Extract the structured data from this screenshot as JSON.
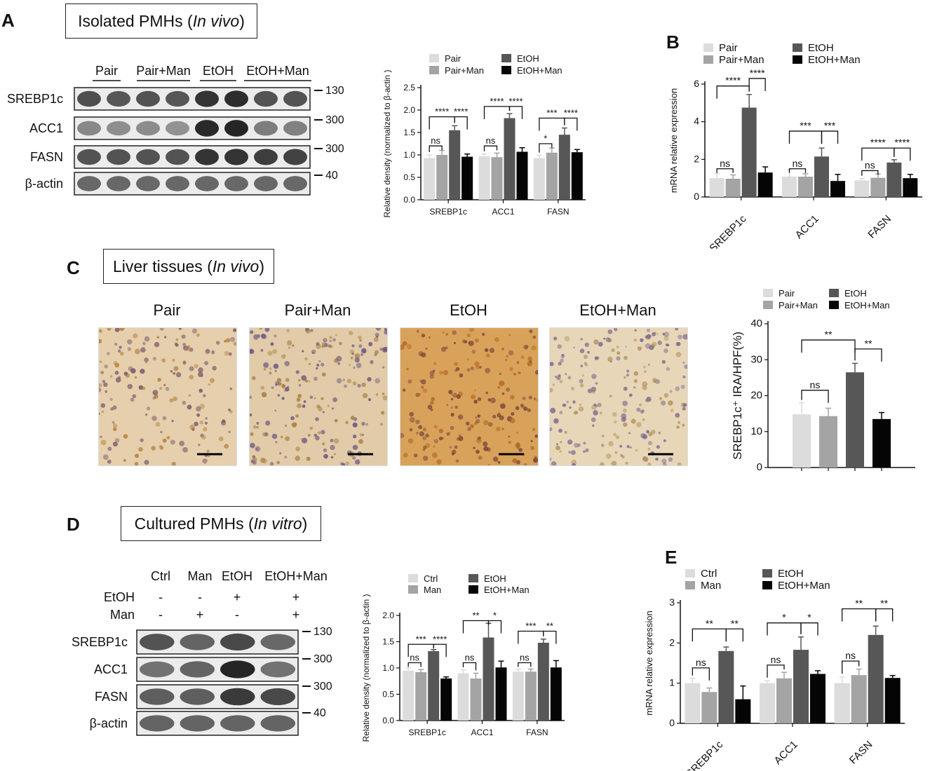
{
  "colors": {
    "pair": "#dcdcdc",
    "pair_man": "#a4a4a4",
    "etoh": "#575757",
    "etoh_man": "#050505"
  },
  "panelA": {
    "letter": "A",
    "title_main": "Isolated PMHs (",
    "title_italic": "In vivo",
    "title_end": ")",
    "groups": [
      "Pair",
      "Pair+Man",
      "EtOH",
      "EtOH+Man"
    ],
    "proteins": [
      "SREBP1c",
      "ACC1",
      "FASN",
      "β-actin"
    ],
    "mw": [
      "130",
      "300",
      "300",
      "40"
    ]
  },
  "panelC": {
    "letter": "C",
    "title_main": "Liver tissues (",
    "title_italic": "In vivo",
    "title_end": ")",
    "images": [
      "Pair",
      "Pair+Man",
      "EtOH",
      "EtOH+Man"
    ]
  },
  "panelD": {
    "letter": "D",
    "title_main": "Cultured PMHs (",
    "title_italic": "In vitro",
    "title_end": ")",
    "groups": [
      "Ctrl",
      "Man",
      "EtOH",
      "EtOH+Man"
    ],
    "treat_rows": [
      {
        "label": "EtOH",
        "signs": [
          "-",
          "-",
          "+",
          "+"
        ]
      },
      {
        "label": "Man",
        "signs": [
          "-",
          "+",
          "-",
          "+"
        ]
      }
    ],
    "proteins": [
      "SREBP1c",
      "ACC1",
      "FASN",
      "β-actin"
    ],
    "mw": [
      "130",
      "300",
      "300",
      "40"
    ]
  },
  "panelB": {
    "letter": "B"
  },
  "panelE": {
    "letter": "E"
  },
  "chart_data": [
    {
      "id": "A-densitometry",
      "type": "bar",
      "ylabel": "Relative density (normalized to β-actin )",
      "ylim": [
        0,
        2.5
      ],
      "yticks": [
        "0.0",
        "0.5",
        "1.0",
        "1.5",
        "2.0",
        "2.5"
      ],
      "categories": [
        "SREBP1c",
        "ACC1",
        "FASN"
      ],
      "series": [
        {
          "name": "Pair",
          "values": [
            0.93,
            0.97,
            0.93
          ],
          "err": [
            0.07,
            0.05,
            0.06
          ]
        },
        {
          "name": "Pair+Man",
          "values": [
            1.0,
            0.95,
            1.05
          ],
          "err": [
            0.1,
            0.09,
            0.1
          ]
        },
        {
          "name": "EtOH",
          "values": [
            1.55,
            1.82,
            1.45
          ],
          "err": [
            0.1,
            0.1,
            0.15
          ]
        },
        {
          "name": "EtOH+Man",
          "values": [
            0.96,
            1.07,
            1.06
          ],
          "err": [
            0.06,
            0.09,
            0.06
          ]
        }
      ],
      "legend": "top",
      "legend_cols": [
        [
          "Pair",
          "Pair+Man"
        ],
        [
          "EtOH",
          "EtOH+Man"
        ]
      ],
      "annotations": [
        {
          "cat": 0,
          "from": 0,
          "to": 1,
          "text": "ns",
          "level": 1.2
        },
        {
          "cat": 0,
          "from": 0,
          "to": 2,
          "text": "****",
          "level": 1.85
        },
        {
          "cat": 0,
          "from": 2,
          "to": 3,
          "text": "****",
          "level": 1.85
        },
        {
          "cat": 1,
          "from": 0,
          "to": 1,
          "text": "ns",
          "level": 1.2
        },
        {
          "cat": 1,
          "from": 0,
          "to": 2,
          "text": "****",
          "level": 2.08
        },
        {
          "cat": 1,
          "from": 2,
          "to": 3,
          "text": "****",
          "level": 2.08
        },
        {
          "cat": 2,
          "from": 0,
          "to": 1,
          "text": "*",
          "level": 1.25
        },
        {
          "cat": 2,
          "from": 0,
          "to": 2,
          "text": "***",
          "level": 1.82
        },
        {
          "cat": 2,
          "from": 2,
          "to": 3,
          "text": "****",
          "level": 1.82
        }
      ]
    },
    {
      "id": "B-mrna",
      "type": "bar",
      "ylabel": "mRNA relative expression",
      "ylim": [
        0,
        6
      ],
      "yticks": [
        "0",
        "2",
        "4",
        "6"
      ],
      "categories": [
        "SREBP1c",
        "ACC1",
        "FASN"
      ],
      "series": [
        {
          "name": "Pair",
          "values": [
            1.0,
            1.08,
            0.88
          ],
          "err": [
            0.25,
            0.35,
            0.1
          ]
        },
        {
          "name": "Pair+Man",
          "values": [
            0.97,
            1.08,
            1.02
          ],
          "err": [
            0.2,
            0.15,
            0.2
          ]
        },
        {
          "name": "EtOH",
          "values": [
            4.75,
            2.15,
            1.83
          ],
          "err": [
            0.7,
            0.45,
            0.15
          ]
        },
        {
          "name": "EtOH+Man",
          "values": [
            1.3,
            0.85,
            1.0
          ],
          "err": [
            0.3,
            0.35,
            0.2
          ]
        }
      ],
      "legend": "top",
      "legend_cols": [
        [
          "Pair",
          "Pair+Man"
        ],
        [
          "EtOH",
          "EtOH+Man"
        ]
      ],
      "annotations": [
        {
          "cat": 0,
          "from": 0,
          "to": 1,
          "text": "ns",
          "level": 1.5
        },
        {
          "cat": 0,
          "from": 0,
          "to": 2,
          "text": "****",
          "level": 5.9
        },
        {
          "cat": 0,
          "from": 2,
          "to": 3,
          "text": "****",
          "level": 6.3
        },
        {
          "cat": 1,
          "from": 0,
          "to": 1,
          "text": "ns",
          "level": 1.5
        },
        {
          "cat": 1,
          "from": 0,
          "to": 2,
          "text": "***",
          "level": 3.5
        },
        {
          "cat": 1,
          "from": 2,
          "to": 3,
          "text": "***",
          "level": 3.5
        },
        {
          "cat": 2,
          "from": 0,
          "to": 1,
          "text": "ns",
          "level": 1.4
        },
        {
          "cat": 2,
          "from": 0,
          "to": 2,
          "text": "****",
          "level": 2.6
        },
        {
          "cat": 2,
          "from": 2,
          "to": 3,
          "text": "****",
          "level": 2.6
        }
      ]
    },
    {
      "id": "C-ihc",
      "type": "bar",
      "ylabel": "SREBP1c⁺ IRA/HPF(%)",
      "ylim": [
        0,
        40
      ],
      "yticks": [
        "0",
        "10",
        "20",
        "30",
        "40"
      ],
      "categories": [
        ""
      ],
      "series": [
        {
          "name": "Pair",
          "values": [
            14.8
          ],
          "err": [
            3.2
          ]
        },
        {
          "name": "Pair+Man",
          "values": [
            14.3
          ],
          "err": [
            2.2
          ]
        },
        {
          "name": "EtOH",
          "values": [
            26.5
          ],
          "err": [
            2.5
          ]
        },
        {
          "name": "EtOH+Man",
          "values": [
            13.5
          ],
          "err": [
            1.8
          ]
        }
      ],
      "legend": "top",
      "legend_cols": [
        [
          "Pair",
          "Pair+Man"
        ],
        [
          "EtOH",
          "EtOH+Man"
        ]
      ],
      "annotations": [
        {
          "cat": 0,
          "from": 0,
          "to": 1,
          "text": "ns",
          "level": 21.5
        },
        {
          "cat": 0,
          "from": 0,
          "to": 2,
          "text": "**",
          "level": 35.5
        },
        {
          "cat": 0,
          "from": 2,
          "to": 3,
          "text": "**",
          "level": 33
        }
      ]
    },
    {
      "id": "D-densitometry",
      "type": "bar",
      "ylabel": "Relative density (normalized to β-actin )",
      "ylim": [
        0,
        2.0
      ],
      "yticks": [
        "0.0",
        "0.5",
        "1.0",
        "1.5",
        "2.0"
      ],
      "categories": [
        "SREBP1c",
        "ACC1",
        "FASN"
      ],
      "series": [
        {
          "name": "Ctrl",
          "values": [
            0.95,
            0.9,
            0.93
          ],
          "err": [
            0.05,
            0.06,
            0.05
          ]
        },
        {
          "name": "Man",
          "values": [
            0.92,
            0.8,
            0.93
          ],
          "err": [
            0.05,
            0.1,
            0.05
          ]
        },
        {
          "name": "EtOH",
          "values": [
            1.32,
            1.58,
            1.48
          ],
          "err": [
            0.03,
            0.27,
            0.07
          ]
        },
        {
          "name": "EtOH+Man",
          "values": [
            0.8,
            1.01,
            1.01
          ],
          "err": [
            0.03,
            0.12,
            0.13
          ]
        }
      ],
      "legend": "top",
      "legend_cols": [
        [
          "Ctrl",
          "Man"
        ],
        [
          "EtOH",
          "EtOH+Man"
        ]
      ],
      "annotations": [
        {
          "cat": 0,
          "from": 0,
          "to": 1,
          "text": "ns",
          "level": 1.1
        },
        {
          "cat": 0,
          "from": 0,
          "to": 2,
          "text": "***",
          "level": 1.45
        },
        {
          "cat": 0,
          "from": 2,
          "to": 3,
          "text": "****",
          "level": 1.45
        },
        {
          "cat": 1,
          "from": 0,
          "to": 1,
          "text": "ns",
          "level": 1.1
        },
        {
          "cat": 1,
          "from": 0,
          "to": 2,
          "text": "**",
          "level": 1.9
        },
        {
          "cat": 1,
          "from": 2,
          "to": 3,
          "text": "*",
          "level": 1.9
        },
        {
          "cat": 2,
          "from": 0,
          "to": 1,
          "text": "ns",
          "level": 1.1
        },
        {
          "cat": 2,
          "from": 0,
          "to": 2,
          "text": "***",
          "level": 1.7
        },
        {
          "cat": 2,
          "from": 2,
          "to": 3,
          "text": "**",
          "level": 1.7
        }
      ]
    },
    {
      "id": "E-mrna",
      "type": "bar",
      "ylabel": "mRNA relative expression",
      "ylim": [
        0,
        3
      ],
      "yticks": [
        "0",
        "1",
        "2",
        "3"
      ],
      "categories": [
        "SREBP1c",
        "ACC1",
        "FASN"
      ],
      "series": [
        {
          "name": "Ctrl",
          "values": [
            1.0,
            1.0,
            1.0
          ],
          "err": [
            0.12,
            0.06,
            0.15
          ]
        },
        {
          "name": "Man",
          "values": [
            0.78,
            1.12,
            1.2
          ],
          "err": [
            0.1,
            0.15,
            0.15
          ]
        },
        {
          "name": "EtOH",
          "values": [
            1.8,
            1.83,
            2.2
          ],
          "err": [
            0.1,
            0.32,
            0.22
          ]
        },
        {
          "name": "EtOH+Man",
          "values": [
            0.6,
            1.23,
            1.13
          ],
          "err": [
            0.33,
            0.08,
            0.06
          ]
        }
      ],
      "legend": "top",
      "legend_cols": [
        [
          "Ctrl",
          "Man"
        ],
        [
          "EtOH",
          "EtOH+Man"
        ]
      ],
      "annotations": [
        {
          "cat": 0,
          "from": 0,
          "to": 1,
          "text": "ns",
          "level": 1.38
        },
        {
          "cat": 0,
          "from": 0,
          "to": 2,
          "text": "**",
          "level": 2.35
        },
        {
          "cat": 0,
          "from": 2,
          "to": 3,
          "text": "**",
          "level": 2.35
        },
        {
          "cat": 1,
          "from": 0,
          "to": 1,
          "text": "ns",
          "level": 1.45
        },
        {
          "cat": 1,
          "from": 0,
          "to": 2,
          "text": "*",
          "level": 2.5
        },
        {
          "cat": 1,
          "from": 2,
          "to": 3,
          "text": "*",
          "level": 2.5
        },
        {
          "cat": 2,
          "from": 0,
          "to": 1,
          "text": "ns",
          "level": 1.55
        },
        {
          "cat": 2,
          "from": 0,
          "to": 2,
          "text": "**",
          "level": 2.85
        },
        {
          "cat": 2,
          "from": 2,
          "to": 3,
          "text": "**",
          "level": 2.85
        }
      ]
    }
  ]
}
